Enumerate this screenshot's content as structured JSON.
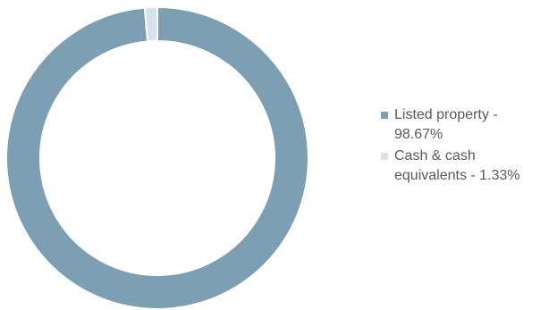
{
  "chart_data": {
    "type": "pie",
    "variant": "donut",
    "slices": [
      {
        "label": "Listed property - 98.67%",
        "value": 98.67,
        "color": "#7c9fb3"
      },
      {
        "label": "Cash & cash equivalents - 1.33%",
        "value": 1.33,
        "color": "#d6e1e8"
      }
    ],
    "legend_position": "right",
    "title": ""
  }
}
